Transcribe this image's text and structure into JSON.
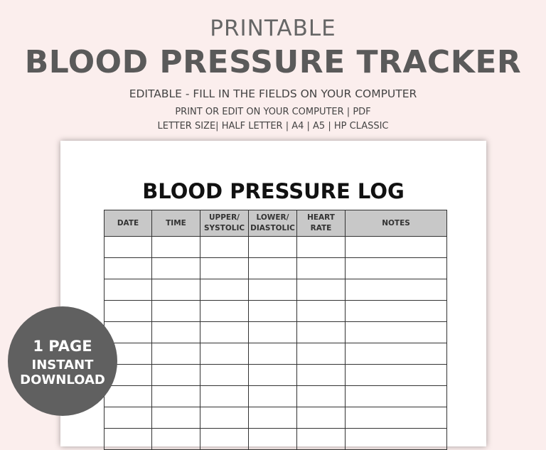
{
  "header": {
    "subtitle": "PRINTABLE",
    "title": "BLOOD PRESSURE TRACKER",
    "tagline": "EDITABLE - FILL IN THE FIELDS ON YOUR COMPUTER",
    "line1": "PRINT OR EDIT ON YOUR COMPUTER | PDF",
    "line2": "LETTER SIZE| HALF LETTER | A4 | A5 | HP CLASSIC"
  },
  "sheet": {
    "title": "BLOOD PRESSURE LOG",
    "columns": [
      {
        "line1": "DATE",
        "line2": ""
      },
      {
        "line1": "TIME",
        "line2": ""
      },
      {
        "line1": "UPPER/",
        "line2": "SYSTOLIC"
      },
      {
        "line1": "LOWER/",
        "line2": "DIASTOLIC"
      },
      {
        "line1": "HEART",
        "line2": "RATE"
      },
      {
        "line1": "NOTES",
        "line2": ""
      }
    ]
  },
  "badge": {
    "line1": "1 PAGE",
    "line2": "INSTANT",
    "line3": "DOWNLOAD"
  },
  "colors": {
    "background": "#fbeeed",
    "badge": "#606060",
    "header_cell": "#c8c8c8"
  }
}
